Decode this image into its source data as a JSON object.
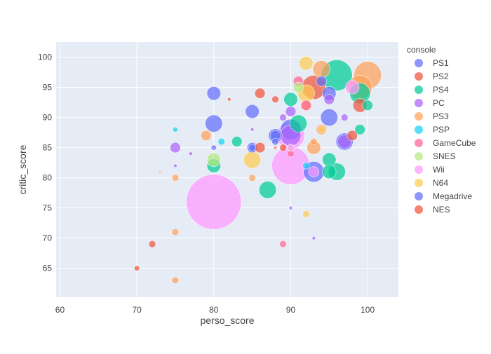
{
  "chart_data": {
    "type": "scatter",
    "subtype": "bubble",
    "xlabel": "perso_score",
    "ylabel": "critic_score",
    "xlim": [
      59.5,
      104
    ],
    "ylim": [
      60.2,
      102.5
    ],
    "x_ticks": [
      60,
      70,
      80,
      90,
      100
    ],
    "y_ticks": [
      65,
      70,
      75,
      80,
      85,
      90,
      95,
      100
    ],
    "grid": true,
    "legend": {
      "title": "console",
      "placement": "right"
    },
    "series": [
      {
        "name": "PS1",
        "color": "#636efa",
        "points": [
          {
            "x": 80,
            "y": 94,
            "size": 4
          },
          {
            "x": 80,
            "y": 89,
            "size": 5
          },
          {
            "x": 85,
            "y": 91,
            "size": 4
          },
          {
            "x": 88,
            "y": 87,
            "size": 4
          },
          {
            "x": 90,
            "y": 88,
            "size": 6
          },
          {
            "x": 93,
            "y": 81,
            "size": 6
          },
          {
            "x": 95,
            "y": 90,
            "size": 5
          },
          {
            "x": 97,
            "y": 86,
            "size": 5
          },
          {
            "x": 95,
            "y": 94,
            "size": 4
          },
          {
            "x": 94,
            "y": 96,
            "size": 3
          },
          {
            "x": 85,
            "y": 85,
            "size": 3
          },
          {
            "x": 88,
            "y": 86,
            "size": 2
          }
        ]
      },
      {
        "name": "PS2",
        "color": "#ef553b",
        "points": [
          {
            "x": 93,
            "y": 95,
            "size": 7
          },
          {
            "x": 99,
            "y": 92,
            "size": 4
          },
          {
            "x": 86,
            "y": 94,
            "size": 3
          },
          {
            "x": 86,
            "y": 85,
            "size": 3
          },
          {
            "x": 98,
            "y": 87,
            "size": 3
          },
          {
            "x": 88,
            "y": 93,
            "size": 2
          },
          {
            "x": 72,
            "y": 69,
            "size": 2
          },
          {
            "x": 70,
            "y": 65,
            "size": 1.5
          }
        ]
      },
      {
        "name": "PS4",
        "color": "#00cc96",
        "points": [
          {
            "x": 96,
            "y": 97,
            "size": 9
          },
          {
            "x": 99,
            "y": 94,
            "size": 6
          },
          {
            "x": 96,
            "y": 81,
            "size": 5
          },
          {
            "x": 95,
            "y": 83,
            "size": 4
          },
          {
            "x": 87,
            "y": 78,
            "size": 5
          },
          {
            "x": 80,
            "y": 82,
            "size": 4
          },
          {
            "x": 91,
            "y": 89,
            "size": 5
          },
          {
            "x": 100,
            "y": 92,
            "size": 3
          },
          {
            "x": 83,
            "y": 86,
            "size": 3
          },
          {
            "x": 99,
            "y": 88,
            "size": 3
          },
          {
            "x": 90,
            "y": 93,
            "size": 4
          },
          {
            "x": 95,
            "y": 81,
            "size": 4
          }
        ]
      },
      {
        "name": "PC",
        "color": "#ab63fa",
        "points": [
          {
            "x": 90,
            "y": 87,
            "size": 6
          },
          {
            "x": 97,
            "y": 86,
            "size": 4
          },
          {
            "x": 75,
            "y": 85,
            "size": 3
          },
          {
            "x": 95,
            "y": 93,
            "size": 3
          },
          {
            "x": 90,
            "y": 91,
            "size": 3
          },
          {
            "x": 89,
            "y": 90,
            "size": 2
          },
          {
            "x": 97,
            "y": 90,
            "size": 2
          },
          {
            "x": 85,
            "y": 88,
            "size": 1
          },
          {
            "x": 77,
            "y": 84,
            "size": 1
          },
          {
            "x": 93,
            "y": 70,
            "size": 1
          },
          {
            "x": 75,
            "y": 82,
            "size": 1
          },
          {
            "x": 90,
            "y": 75,
            "size": 1
          }
        ]
      },
      {
        "name": "PS3",
        "color": "#ffa15a",
        "points": [
          {
            "x": 100,
            "y": 97,
            "size": 8
          },
          {
            "x": 99,
            "y": 95,
            "size": 7
          },
          {
            "x": 94,
            "y": 98,
            "size": 5
          },
          {
            "x": 93,
            "y": 85,
            "size": 4
          },
          {
            "x": 94,
            "y": 88,
            "size": 3
          },
          {
            "x": 79,
            "y": 87,
            "size": 3
          },
          {
            "x": 92,
            "y": 92,
            "size": 3
          },
          {
            "x": 75,
            "y": 80,
            "size": 2
          },
          {
            "x": 75,
            "y": 71,
            "size": 2
          },
          {
            "x": 75,
            "y": 63,
            "size": 2
          },
          {
            "x": 85,
            "y": 80,
            "size": 2
          },
          {
            "x": 93,
            "y": 86,
            "size": 2
          }
        ]
      },
      {
        "name": "PSP",
        "color": "#19d3f3",
        "points": [
          {
            "x": 92,
            "y": 82,
            "size": 2
          },
          {
            "x": 81,
            "y": 86,
            "size": 2
          },
          {
            "x": 75,
            "y": 88,
            "size": 1.5
          }
        ]
      },
      {
        "name": "GameCube",
        "color": "#ff6692",
        "points": [
          {
            "x": 91,
            "y": 96,
            "size": 3
          },
          {
            "x": 92,
            "y": 92,
            "size": 3
          },
          {
            "x": 89,
            "y": 69,
            "size": 2
          },
          {
            "x": 90,
            "y": 84,
            "size": 2
          },
          {
            "x": 88,
            "y": 85,
            "size": 1
          }
        ]
      },
      {
        "name": "SNES",
        "color": "#b6e880",
        "points": [
          {
            "x": 80,
            "y": 83,
            "size": 4
          },
          {
            "x": 91,
            "y": 95,
            "size": 3
          },
          {
            "x": 90,
            "y": 85,
            "size": 2
          }
        ]
      },
      {
        "name": "Wii",
        "color": "#ff97ff",
        "points": [
          {
            "x": 80,
            "y": 76,
            "size": 16
          },
          {
            "x": 90,
            "y": 82,
            "size": 11
          },
          {
            "x": 90,
            "y": 87,
            "size": 8
          },
          {
            "x": 98,
            "y": 95,
            "size": 4
          },
          {
            "x": 93,
            "y": 81,
            "size": 3
          },
          {
            "x": 90,
            "y": 85,
            "size": 2
          }
        ]
      },
      {
        "name": "N64",
        "color": "#fecb52",
        "points": [
          {
            "x": 92,
            "y": 99,
            "size": 4
          },
          {
            "x": 85,
            "y": 83,
            "size": 5
          },
          {
            "x": 92,
            "y": 94,
            "size": 5
          },
          {
            "x": 94,
            "y": 88,
            "size": 2
          },
          {
            "x": 92,
            "y": 74,
            "size": 2
          }
        ]
      },
      {
        "name": "Megadrive",
        "color": "#636efa",
        "points": [
          {
            "x": 88,
            "y": 87,
            "size": 3
          },
          {
            "x": 85,
            "y": 85,
            "size": 2
          },
          {
            "x": 80,
            "y": 85,
            "size": 1.5
          }
        ]
      },
      {
        "name": "NES",
        "color": "#ef553b",
        "points": [
          {
            "x": 89,
            "y": 85,
            "size": 2
          },
          {
            "x": 73,
            "y": 81,
            "size": 0.3
          },
          {
            "x": 82,
            "y": 93,
            "size": 1
          }
        ]
      }
    ]
  }
}
